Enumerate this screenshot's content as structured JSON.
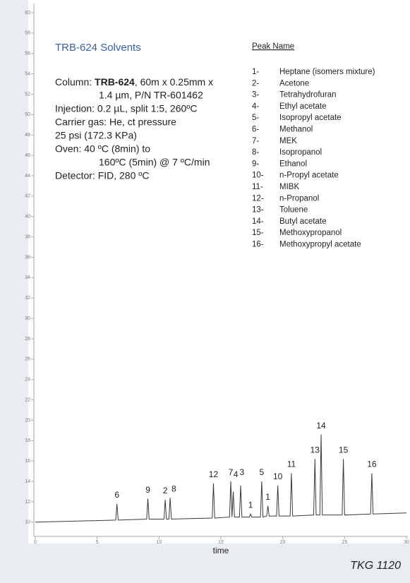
{
  "chart_data": {
    "type": "line",
    "title": "TRB-624 Solvents",
    "method": {
      "column": {
        "prefix": "Column: ",
        "name": "TRB-624",
        "suffix": ", 60m x 0.25mm x"
      },
      "column_cont": "1.4 µm, P/N TR-601462",
      "injection": "Injection: 0.2 µL, split 1:5, 260ºC",
      "carrier": "Carrier gas: He, ct pressure",
      "pressure": "25 psi (172.3 KPa)",
      "oven": "Oven: 40 ºC (8min)  to",
      "oven_cont": "160ºC (5min) @ 7 ºC/min",
      "detector": "Detector: FID, 280 ºC"
    },
    "peak_list_title": "Peak Name",
    "peaks": [
      {
        "number": "1-",
        "name": "Heptane (isomers mixture)"
      },
      {
        "number": "2-",
        "name": "Acetone"
      },
      {
        "number": "3-",
        "name": "Tetrahydrofuran"
      },
      {
        "number": "4-",
        "name": "Ethyl acetate"
      },
      {
        "number": "5-",
        "name": "Isopropyl acetate"
      },
      {
        "number": "6-",
        "name": "Methanol"
      },
      {
        "number": "7-",
        "name": "MEK"
      },
      {
        "number": "8-",
        "name": "Isopropanol"
      },
      {
        "number": "9-",
        "name": "Ethanol"
      },
      {
        "number": "10-",
        "name": "n-Propyl acetate"
      },
      {
        "number": "11-",
        "name": "MIBK"
      },
      {
        "number": "12-",
        "name": "n-Propanol"
      },
      {
        "number": "13-",
        "name": "Toluene"
      },
      {
        "number": "14-",
        "name": "Butyl acetate"
      },
      {
        "number": "15-",
        "name": "Methoxypropanol"
      },
      {
        "number": "16-",
        "name": "Methoxypropyl acetate"
      }
    ],
    "x_label": "time",
    "footer": "TKG 1120",
    "color": "#3a3a3a",
    "x": [
      0,
      6.5,
      6.6,
      6.7,
      9.0,
      9.1,
      9.2,
      10.4,
      10.5,
      10.6,
      10.8,
      10.9,
      11.0,
      14.3,
      14.4,
      14.5,
      15.7,
      15.8,
      15.9,
      16.0,
      16.1,
      16.5,
      16.6,
      16.7,
      17.3,
      17.4,
      17.5,
      18.2,
      18.3,
      18.4,
      18.7,
      18.8,
      18.9,
      19.5,
      19.6,
      19.7,
      20.6,
      20.7,
      20.8,
      22.5,
      22.6,
      22.7,
      23.0,
      23.1,
      23.2,
      24.8,
      24.9,
      25.0,
      27.1,
      27.2,
      27.3,
      30
    ],
    "y": [
      10.0,
      10.2,
      11.8,
      10.2,
      10.3,
      12.3,
      10.3,
      10.3,
      12.2,
      10.3,
      10.3,
      12.4,
      10.3,
      10.4,
      13.8,
      10.4,
      10.5,
      14.0,
      10.5,
      13.0,
      10.5,
      10.5,
      13.6,
      10.5,
      10.5,
      10.8,
      10.5,
      10.5,
      14.0,
      10.5,
      10.6,
      11.6,
      10.6,
      10.6,
      13.6,
      10.6,
      10.6,
      14.8,
      10.6,
      10.7,
      16.2,
      10.7,
      10.7,
      18.6,
      10.7,
      10.7,
      16.2,
      10.7,
      10.8,
      14.8,
      10.8,
      10.9
    ],
    "annotations": [
      {
        "text": "6",
        "x": 6.6,
        "y": 11.8
      },
      {
        "text": "9",
        "x": 9.1,
        "y": 12.3
      },
      {
        "text": "2",
        "x": 10.5,
        "y": 12.2
      },
      {
        "text": "8",
        "x": 11.2,
        "y": 12.4
      },
      {
        "text": "12",
        "x": 14.4,
        "y": 13.8
      },
      {
        "text": "7",
        "x": 15.8,
        "y": 14.0
      },
      {
        "text": "4",
        "x": 16.2,
        "y": 13.8
      },
      {
        "text": "3",
        "x": 16.7,
        "y": 14.0
      },
      {
        "text": "1",
        "x": 17.4,
        "y": 10.8
      },
      {
        "text": "5",
        "x": 18.3,
        "y": 14.0
      },
      {
        "text": "1",
        "x": 18.8,
        "y": 11.6
      },
      {
        "text": "10",
        "x": 19.6,
        "y": 13.6
      },
      {
        "text": "11",
        "x": 20.7,
        "y": 14.8
      },
      {
        "text": "13",
        "x": 22.6,
        "y": 16.2
      },
      {
        "text": "14",
        "x": 23.1,
        "y": 18.6
      },
      {
        "text": "15",
        "x": 24.9,
        "y": 16.2
      },
      {
        "text": "16",
        "x": 27.2,
        "y": 14.8
      }
    ],
    "xlim": [
      0,
      30
    ],
    "xticks": [
      0,
      5,
      10,
      15,
      20,
      25,
      30
    ],
    "ylim": [
      8.6,
      60.9
    ],
    "yticks": [
      10,
      12,
      14,
      16,
      18,
      20,
      22,
      24,
      26,
      28,
      30,
      32,
      34,
      36,
      38,
      40,
      42,
      44,
      46,
      48,
      50,
      52,
      54,
      56,
      58,
      60
    ]
  }
}
